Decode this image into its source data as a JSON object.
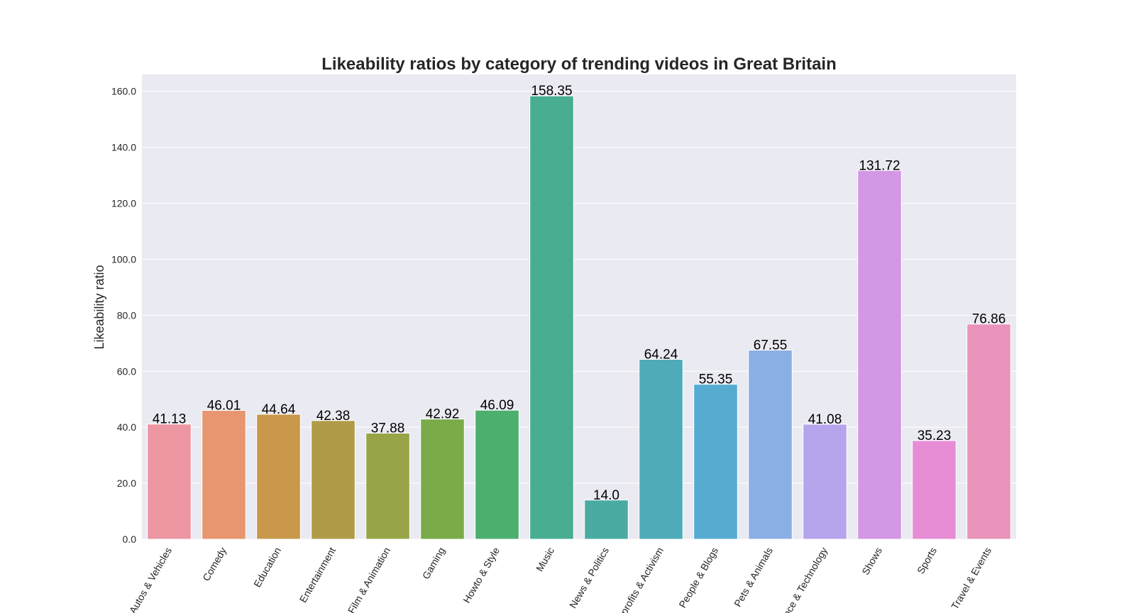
{
  "chart_data": {
    "type": "bar",
    "title": "Likeability ratios by category of trending videos in Great Britain",
    "xlabel": "",
    "ylabel": "Likeability ratio",
    "ylim": [
      0,
      166
    ],
    "yticks": [
      "0.0",
      "20.0",
      "40.0",
      "60.0",
      "80.0",
      "100.0",
      "120.0",
      "140.0",
      "160.0"
    ],
    "grid": true,
    "categories": [
      "Autos & Vehicles",
      "Comedy",
      "Education",
      "Entertainment",
      "Film & Animation",
      "Gaming",
      "Howto & Style",
      "Music",
      "News & Politics",
      "Nonprofits & Activism",
      "People & Blogs",
      "Pets & Animals",
      "Science & Technology",
      "Shows",
      "Sports",
      "Travel & Events"
    ],
    "values": [
      41.13,
      46.01,
      44.64,
      42.38,
      37.88,
      42.92,
      46.09,
      158.35,
      14.0,
      64.24,
      55.35,
      67.55,
      41.08,
      131.72,
      35.23,
      76.86
    ],
    "value_labels": [
      "41.13",
      "46.01",
      "44.64",
      "42.38",
      "37.88",
      "42.92",
      "46.09",
      "158.35",
      "14.0",
      "64.24",
      "55.35",
      "67.55",
      "41.08",
      "131.72",
      "35.23",
      "76.86"
    ],
    "colors": [
      "#ec96a2",
      "#e7966f",
      "#c9984a",
      "#b09c48",
      "#98a447",
      "#79ab49",
      "#4caf6e",
      "#49ad91",
      "#4aaba4",
      "#4eabb7",
      "#55acd0",
      "#8aafe5",
      "#b6a5ec",
      "#d497e6",
      "#e68dd6",
      "#e993bb"
    ]
  }
}
